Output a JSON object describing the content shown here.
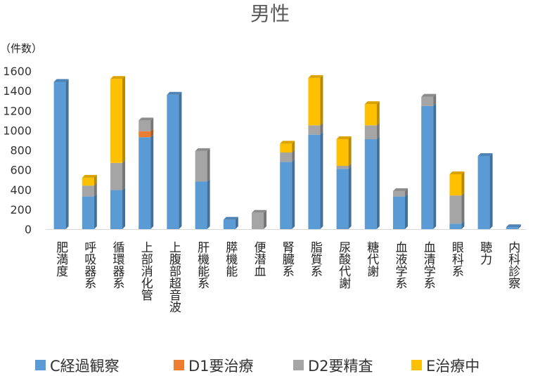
{
  "chart_data": {
    "type": "bar",
    "stacked": true,
    "title": "男性",
    "unit_label": "（件数）",
    "categories": [
      "肥満度",
      "呼吸器系",
      "循環器系",
      "上部消化管",
      "上腹部超音波",
      "肝機能系",
      "膵機能",
      "便潜血",
      "腎臓系",
      "脂質系",
      "尿酸代謝",
      "糖代謝",
      "血液学系",
      "血清学系",
      "眼科系",
      "聴力",
      "内科診察"
    ],
    "series": [
      {
        "name": "C経過観察",
        "color": "#5b9bd5",
        "values": [
          1490,
          330,
          395,
          930,
          1360,
          480,
          95,
          0,
          680,
          955,
          610,
          910,
          330,
          1245,
          55,
          740,
          20
        ]
      },
      {
        "name": "D1要治療",
        "color": "#ed7d31",
        "values": [
          0,
          0,
          0,
          60,
          0,
          0,
          0,
          0,
          0,
          0,
          0,
          0,
          0,
          0,
          0,
          0,
          0
        ]
      },
      {
        "name": "D2要精査",
        "color": "#a5a5a5",
        "values": [
          0,
          110,
          275,
          110,
          0,
          310,
          0,
          165,
          95,
          95,
          30,
          140,
          55,
          95,
          285,
          0,
          0
        ]
      },
      {
        "name": "E治療中",
        "color": "#ffc000",
        "values": [
          0,
          80,
          850,
          0,
          0,
          0,
          0,
          0,
          90,
          480,
          270,
          215,
          0,
          0,
          215,
          0,
          0
        ]
      }
    ],
    "ylim": [
      0,
      1600
    ],
    "yticks": [
      "0",
      "200",
      "400",
      "600",
      "800",
      "1000",
      "1200",
      "1400",
      "1600"
    ],
    "legend_position": "bottom",
    "grid": false
  }
}
